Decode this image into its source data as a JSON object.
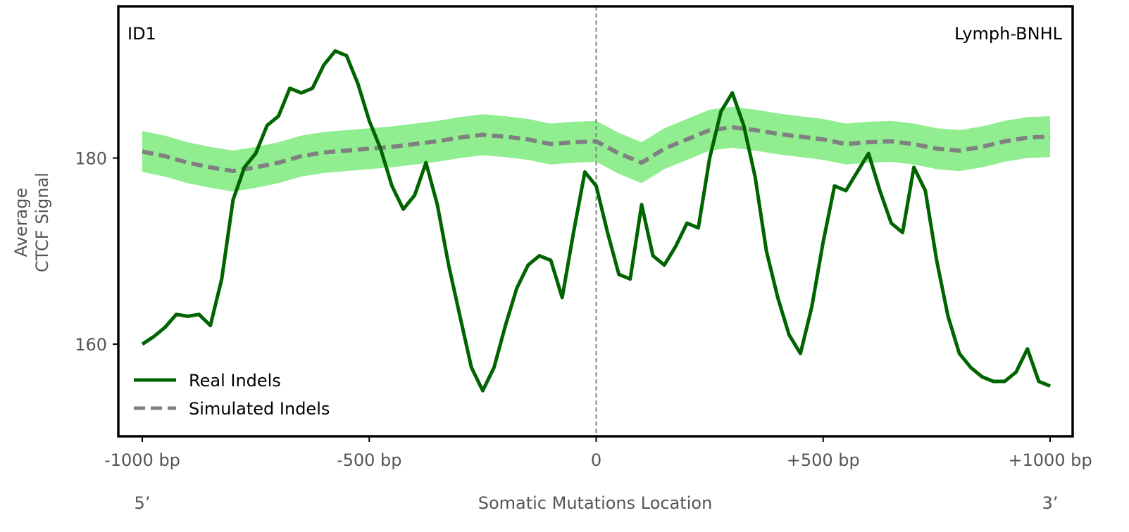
{
  "chart_data": {
    "type": "line",
    "signature_label": "ID1",
    "cancer_type_label": "Lymph-BNHL",
    "xlabel": "Somatic Mutations Location",
    "ylabel_lines": [
      "Average",
      "CTCF Signal"
    ],
    "end_labels": {
      "left": "5’",
      "right": "3’"
    },
    "xlim": [
      -1000,
      1000
    ],
    "ylim": [
      150.1,
      196.3
    ],
    "x_ticks": [
      {
        "value": -1000,
        "label": "-1000 bp"
      },
      {
        "value": -500,
        "label": "-500 bp"
      },
      {
        "value": 0,
        "label": "0"
      },
      {
        "value": 500,
        "label": "+500 bp"
      },
      {
        "value": 1000,
        "label": "+1000 bp"
      }
    ],
    "y_ticks": [
      {
        "value": 160,
        "label": "160"
      },
      {
        "value": 180,
        "label": "180"
      }
    ],
    "center_line_x": 0,
    "legend": {
      "position": "lower-left"
    },
    "colors": {
      "real": "#006400",
      "simulated": "#808080",
      "band": "#90EE90",
      "center_line": "#808080"
    },
    "series": [
      {
        "name": "Real Indels",
        "style": "solid",
        "x": [
          -1000,
          -975,
          -950,
          -925,
          -900,
          -875,
          -850,
          -825,
          -800,
          -775,
          -750,
          -725,
          -700,
          -675,
          -650,
          -625,
          -600,
          -575,
          -550,
          -525,
          -500,
          -475,
          -450,
          -425,
          -400,
          -375,
          -350,
          -325,
          -300,
          -275,
          -250,
          -225,
          -200,
          -175,
          -150,
          -125,
          -100,
          -75,
          -50,
          -25,
          0,
          25,
          50,
          75,
          100,
          125,
          150,
          175,
          200,
          225,
          250,
          275,
          300,
          325,
          350,
          375,
          400,
          425,
          450,
          475,
          500,
          525,
          550,
          575,
          600,
          625,
          650,
          675,
          700,
          725,
          750,
          775,
          800,
          825,
          850,
          875,
          900,
          925,
          950,
          975,
          1000
        ],
        "y": [
          160.0,
          160.8,
          161.8,
          163.2,
          163.0,
          163.2,
          162.0,
          167.0,
          175.5,
          179.0,
          180.5,
          183.5,
          184.5,
          187.5,
          187.0,
          187.5,
          190.0,
          191.5,
          191.0,
          188.0,
          184.0,
          181.0,
          177.0,
          174.5,
          176.0,
          179.5,
          175.0,
          168.5,
          163.0,
          157.5,
          155.0,
          157.5,
          162.0,
          166.0,
          168.5,
          169.5,
          169.0,
          165.0,
          172.0,
          178.5,
          177.0,
          172.0,
          167.5,
          167.0,
          175.0,
          169.5,
          168.5,
          170.5,
          173.0,
          172.5,
          180.0,
          185.0,
          187.0,
          183.5,
          178.0,
          170.0,
          165.0,
          161.0,
          159.0,
          164.0,
          171.0,
          177.0,
          176.5,
          178.5,
          180.5,
          176.5,
          173.0,
          172.0,
          179.0,
          176.5,
          169.0,
          163.0,
          159.0,
          157.5,
          156.5,
          156.0,
          156.0,
          157.0,
          159.5,
          156.0,
          155.5
        ]
      },
      {
        "name": "Simulated Indels",
        "style": "dashed",
        "x": [
          -1000,
          -950,
          -900,
          -850,
          -800,
          -750,
          -700,
          -650,
          -600,
          -550,
          -500,
          -450,
          -400,
          -350,
          -300,
          -250,
          -200,
          -150,
          -100,
          -50,
          0,
          50,
          100,
          150,
          200,
          250,
          300,
          350,
          400,
          450,
          500,
          550,
          600,
          650,
          700,
          750,
          800,
          850,
          900,
          950,
          1000
        ],
        "y": [
          180.7,
          180.2,
          179.5,
          179.0,
          178.6,
          179.0,
          179.5,
          180.2,
          180.6,
          180.8,
          181.0,
          181.2,
          181.5,
          181.8,
          182.2,
          182.5,
          182.3,
          182.0,
          181.5,
          181.7,
          181.8,
          180.5,
          179.5,
          181.0,
          182.0,
          183.0,
          183.3,
          183.0,
          182.6,
          182.3,
          182.0,
          181.5,
          181.7,
          181.8,
          181.5,
          181.0,
          180.8,
          181.2,
          181.8,
          182.2,
          182.3
        ]
      }
    ],
    "band_half_width": 2.2
  }
}
